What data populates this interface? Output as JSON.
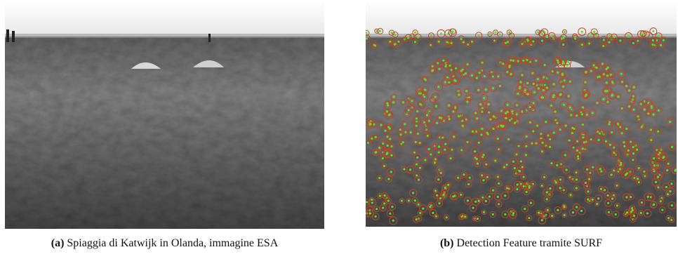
{
  "figures": [
    {
      "label": "(a)",
      "caption": "Spiaggia di Katwijk in Olanda, immagine ESA"
    },
    {
      "label": "(b)",
      "caption": "Detection Feature tramite SURF"
    }
  ]
}
